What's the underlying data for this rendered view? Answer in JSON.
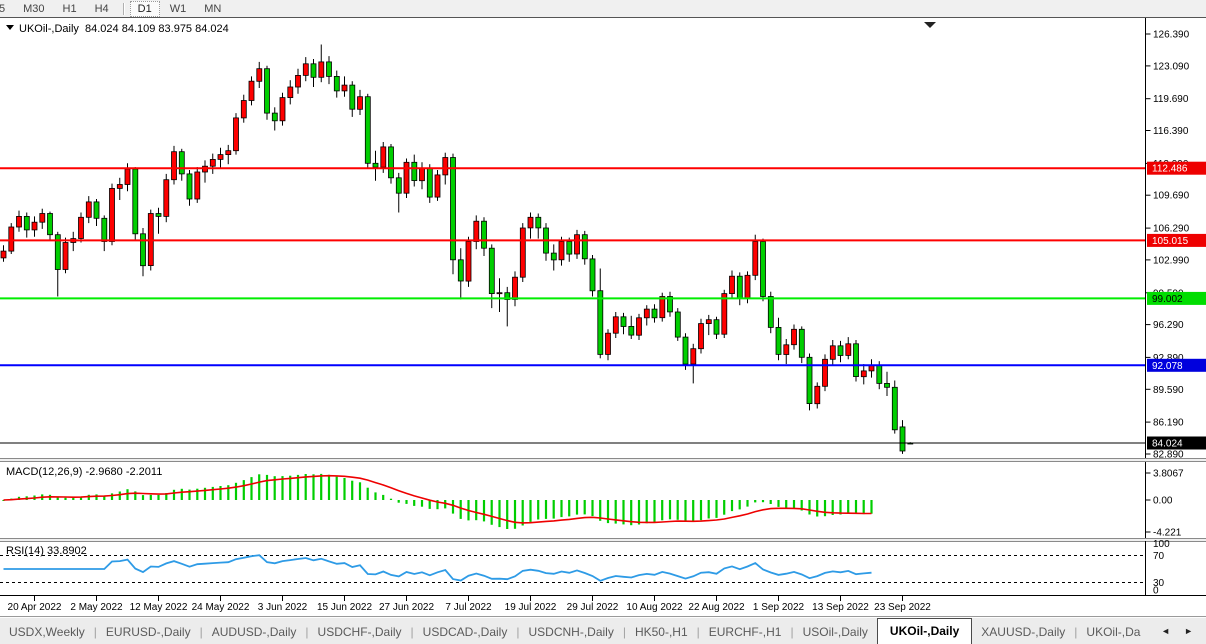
{
  "toolbar": {
    "buttons": [
      {
        "label": "5",
        "partial": true
      },
      {
        "label": "M30"
      },
      {
        "label": "H1"
      },
      {
        "label": "H4"
      },
      {
        "sep": true
      },
      {
        "label": "D1",
        "active": true
      },
      {
        "label": "W1"
      },
      {
        "label": "MN"
      }
    ]
  },
  "chart": {
    "title": {
      "symbol_period": "UKOil-,Daily",
      "open": "84.024",
      "high": "84.109",
      "low": "83.975",
      "close": "84.024"
    },
    "colors": {
      "up": "#fe0000",
      "down": "#00ce00",
      "wick": "#000000",
      "axis_text": "#000000",
      "current_line": "#000000"
    },
    "price_axis": {
      "tick_labels": [
        "126.390",
        "123.090",
        "119.690",
        "116.390",
        "112.990",
        "109.690",
        "106.290",
        "102.990",
        "99.590",
        "96.290",
        "92.890",
        "89.590",
        "86.190",
        "82.890"
      ]
    },
    "levels": [
      {
        "price": 112.486,
        "label": "112.486",
        "line_color": "#ff0000",
        "tag_bg": "#ee0000",
        "tag_text": "#ffffff"
      },
      {
        "price": 105.015,
        "label": "105.015",
        "line_color": "#ff0000",
        "tag_bg": "#ee0000",
        "tag_text": "#ffffff"
      },
      {
        "price": 99.002,
        "label": "99.002",
        "line_color": "#00ee00",
        "tag_bg": "#00dd00",
        "tag_text": "#000000"
      },
      {
        "price": 92.078,
        "label": "92.078",
        "line_color": "#0000ff",
        "tag_bg": "#0000dd",
        "tag_text": "#ffffff"
      }
    ],
    "current_price": {
      "price": 84.024,
      "label": "84.024",
      "tag_bg": "#000000",
      "tag_text": "#ffffff"
    },
    "date_axis": {
      "labels": [
        "20 Apr 2022",
        "2 May 2022",
        "12 May 2022",
        "24 May 2022",
        "3 Jun 2022",
        "15 Jun 2022",
        "27 Jun 2022",
        "7 Jul 2022",
        "19 Jul 2022",
        "29 Jul 2022",
        "10 Aug 2022",
        "22 Aug 2022",
        "1 Sep 2022",
        "13 Sep 2022",
        "23 Sep 2022"
      ],
      "first_index": 4,
      "step": 8
    },
    "indicator_plot_bars": 113,
    "candles": [
      [
        103.2,
        104.5,
        102.8,
        103.9
      ],
      [
        103.9,
        106.8,
        103.6,
        106.4
      ],
      [
        106.4,
        108.1,
        105.9,
        107.5
      ],
      [
        107.5,
        107.9,
        105.3,
        106.1
      ],
      [
        106.1,
        107.5,
        105.4,
        106.9
      ],
      [
        106.9,
        108.3,
        106.2,
        107.8
      ],
      [
        107.8,
        108.0,
        105.0,
        105.6
      ],
      [
        105.6,
        105.9,
        99.2,
        102.0
      ],
      [
        102.0,
        105.3,
        101.6,
        104.8
      ],
      [
        104.8,
        105.9,
        103.9,
        105.2
      ],
      [
        105.2,
        107.9,
        104.8,
        107.4
      ],
      [
        107.4,
        109.6,
        106.8,
        109.0
      ],
      [
        109.0,
        109.3,
        106.5,
        107.3
      ],
      [
        107.3,
        107.6,
        103.9,
        104.9
      ],
      [
        104.9,
        110.9,
        104.5,
        110.4
      ],
      [
        110.4,
        111.5,
        109.2,
        110.8
      ],
      [
        110.8,
        113.0,
        110.1,
        112.4
      ],
      [
        112.4,
        112.6,
        105.1,
        105.7
      ],
      [
        105.7,
        106.3,
        101.3,
        102.4
      ],
      [
        102.4,
        108.2,
        101.9,
        107.8
      ],
      [
        107.8,
        108.4,
        105.7,
        107.5
      ],
      [
        107.5,
        111.9,
        106.9,
        111.3
      ],
      [
        111.3,
        114.8,
        110.8,
        114.2
      ],
      [
        114.2,
        114.5,
        111.2,
        111.9
      ],
      [
        111.9,
        112.3,
        108.6,
        109.3
      ],
      [
        109.3,
        112.6,
        108.9,
        112.1
      ],
      [
        112.1,
        113.3,
        111.0,
        112.7
      ],
      [
        112.7,
        114.0,
        111.9,
        113.4
      ],
      [
        113.4,
        114.6,
        112.5,
        113.9
      ],
      [
        113.9,
        114.9,
        112.9,
        114.3
      ],
      [
        114.3,
        118.2,
        113.9,
        117.7
      ],
      [
        117.7,
        120.1,
        117.2,
        119.5
      ],
      [
        119.5,
        122.0,
        119.0,
        121.5
      ],
      [
        121.5,
        123.5,
        120.8,
        122.8
      ],
      [
        122.8,
        123.1,
        117.5,
        118.2
      ],
      [
        118.2,
        118.8,
        116.4,
        117.4
      ],
      [
        117.4,
        120.3,
        116.9,
        119.8
      ],
      [
        119.8,
        121.6,
        119.1,
        120.9
      ],
      [
        120.9,
        122.8,
        120.2,
        122.1
      ],
      [
        122.1,
        124.0,
        121.5,
        123.3
      ],
      [
        123.3,
        123.8,
        120.9,
        121.9
      ],
      [
        121.9,
        125.3,
        121.4,
        123.5
      ],
      [
        123.5,
        124.1,
        121.2,
        122.0
      ],
      [
        122.0,
        122.6,
        119.8,
        120.5
      ],
      [
        120.5,
        122.0,
        119.9,
        121.1
      ],
      [
        121.1,
        121.5,
        117.8,
        118.6
      ],
      [
        118.6,
        120.6,
        118.0,
        119.9
      ],
      [
        119.9,
        120.2,
        112.5,
        113.0
      ],
      [
        113.0,
        114.3,
        111.2,
        112.6
      ],
      [
        112.6,
        115.2,
        112.0,
        114.7
      ],
      [
        114.7,
        115.0,
        110.9,
        111.5
      ],
      [
        111.5,
        112.0,
        107.9,
        109.9
      ],
      [
        109.9,
        113.5,
        109.4,
        113.1
      ],
      [
        113.1,
        113.9,
        110.6,
        111.2
      ],
      [
        111.2,
        113.1,
        110.3,
        112.5
      ],
      [
        112.5,
        112.9,
        108.9,
        109.5
      ],
      [
        109.5,
        112.3,
        109.1,
        111.8
      ],
      [
        111.8,
        114.1,
        110.8,
        113.6
      ],
      [
        113.6,
        114.0,
        101.5,
        103.0
      ],
      [
        103.0,
        104.2,
        98.9,
        100.8
      ],
      [
        100.8,
        105.4,
        100.2,
        104.9
      ],
      [
        104.9,
        107.6,
        104.1,
        107.0
      ],
      [
        107.0,
        107.4,
        103.4,
        104.2
      ],
      [
        104.2,
        104.6,
        98.0,
        99.5
      ],
      [
        99.5,
        101.1,
        97.6,
        99.6
      ],
      [
        99.6,
        100.2,
        96.1,
        98.9
      ],
      [
        98.9,
        101.8,
        98.2,
        101.2
      ],
      [
        101.2,
        106.8,
        100.7,
        106.3
      ],
      [
        106.3,
        107.9,
        105.2,
        107.4
      ],
      [
        107.4,
        107.8,
        105.2,
        106.3
      ],
      [
        106.3,
        106.8,
        102.9,
        103.7
      ],
      [
        103.7,
        104.6,
        101.9,
        103.0
      ],
      [
        103.0,
        105.4,
        102.4,
        104.9
      ],
      [
        104.9,
        105.3,
        102.8,
        103.6
      ],
      [
        103.6,
        106.1,
        103.1,
        105.6
      ],
      [
        105.6,
        106.0,
        102.5,
        103.1
      ],
      [
        103.1,
        103.5,
        99.2,
        99.8
      ],
      [
        99.8,
        102.1,
        92.8,
        93.2
      ],
      [
        93.2,
        95.8,
        92.6,
        95.4
      ],
      [
        95.4,
        97.6,
        94.9,
        97.1
      ],
      [
        97.1,
        97.5,
        95.3,
        96.1
      ],
      [
        96.1,
        97.2,
        94.8,
        95.2
      ],
      [
        95.2,
        97.4,
        94.7,
        97.0
      ],
      [
        97.0,
        98.3,
        96.2,
        97.9
      ],
      [
        97.9,
        98.4,
        96.5,
        97.0
      ],
      [
        97.0,
        99.6,
        96.6,
        99.2
      ],
      [
        99.2,
        99.7,
        97.1,
        97.6
      ],
      [
        97.6,
        98.0,
        94.6,
        95.0
      ],
      [
        95.0,
        95.4,
        91.6,
        92.2
      ],
      [
        92.2,
        94.3,
        90.2,
        93.8
      ],
      [
        93.8,
        96.9,
        93.3,
        96.4
      ],
      [
        96.4,
        97.3,
        95.2,
        96.8
      ],
      [
        96.8,
        97.1,
        94.8,
        95.3
      ],
      [
        95.3,
        99.9,
        94.9,
        99.5
      ],
      [
        99.5,
        101.9,
        99.0,
        101.3
      ],
      [
        101.3,
        101.7,
        98.3,
        99.0
      ],
      [
        99.0,
        101.8,
        98.5,
        101.4
      ],
      [
        101.4,
        105.6,
        100.9,
        104.9
      ],
      [
        104.9,
        105.2,
        98.7,
        99.2
      ],
      [
        99.2,
        99.7,
        95.4,
        96.0
      ],
      [
        96.0,
        97.0,
        92.6,
        93.2
      ],
      [
        93.2,
        94.8,
        92.2,
        94.2
      ],
      [
        94.2,
        96.3,
        93.7,
        95.8
      ],
      [
        95.8,
        96.1,
        92.3,
        92.9
      ],
      [
        92.9,
        93.3,
        87.4,
        88.1
      ],
      [
        88.1,
        90.3,
        87.6,
        89.9
      ],
      [
        89.9,
        93.2,
        89.4,
        92.7
      ],
      [
        92.7,
        94.7,
        92.1,
        94.1
      ],
      [
        94.1,
        94.6,
        92.4,
        93.1
      ],
      [
        93.1,
        95.0,
        92.7,
        94.3
      ],
      [
        94.3,
        94.7,
        90.4,
        90.9
      ],
      [
        90.9,
        92.2,
        90.1,
        91.5
      ],
      [
        91.5,
        92.7,
        90.8,
        92.1
      ],
      [
        92.1,
        92.5,
        89.6,
        90.2
      ],
      [
        90.2,
        91.4,
        88.9,
        89.8
      ],
      [
        89.8,
        90.5,
        85.0,
        85.4
      ],
      [
        85.7,
        86.4,
        82.9,
        83.2
      ],
      [
        84.03,
        84.11,
        83.97,
        84.02
      ]
    ]
  },
  "macd": {
    "name": "MACD",
    "params": "12,26,9",
    "value_main": "-2.9680",
    "value_signal": "-2.2011",
    "axis_labels": [
      "3.8067",
      "0.00",
      "-4.221"
    ],
    "hist_color": "#00ce00",
    "line_color": "#ee0000"
  },
  "rsi": {
    "name": "RSI",
    "period": "14",
    "value": "33.8902",
    "axis_labels": [
      "100",
      "70",
      "30",
      "0"
    ],
    "upper": 70,
    "lower": 30,
    "line_color": "#2e9be6"
  },
  "tabs": {
    "items": [
      {
        "label": "USDX,Weekly"
      },
      {
        "label": "EURUSD-,Daily"
      },
      {
        "label": "AUDUSD-,Daily"
      },
      {
        "label": "USDCHF-,Daily"
      },
      {
        "label": "USDCAD-,Daily"
      },
      {
        "label": "USDCNH-,Daily"
      },
      {
        "label": "HK50-,H1"
      },
      {
        "label": "EURCHF-,H1"
      },
      {
        "label": "USOil-,Daily"
      },
      {
        "label": "UKOil-,Daily",
        "active": true
      },
      {
        "label": "XAUUSD-,Daily"
      },
      {
        "label": "UKOil-,Da",
        "truncated": true
      }
    ],
    "scroll_left": "◄",
    "scroll_right": "►"
  }
}
